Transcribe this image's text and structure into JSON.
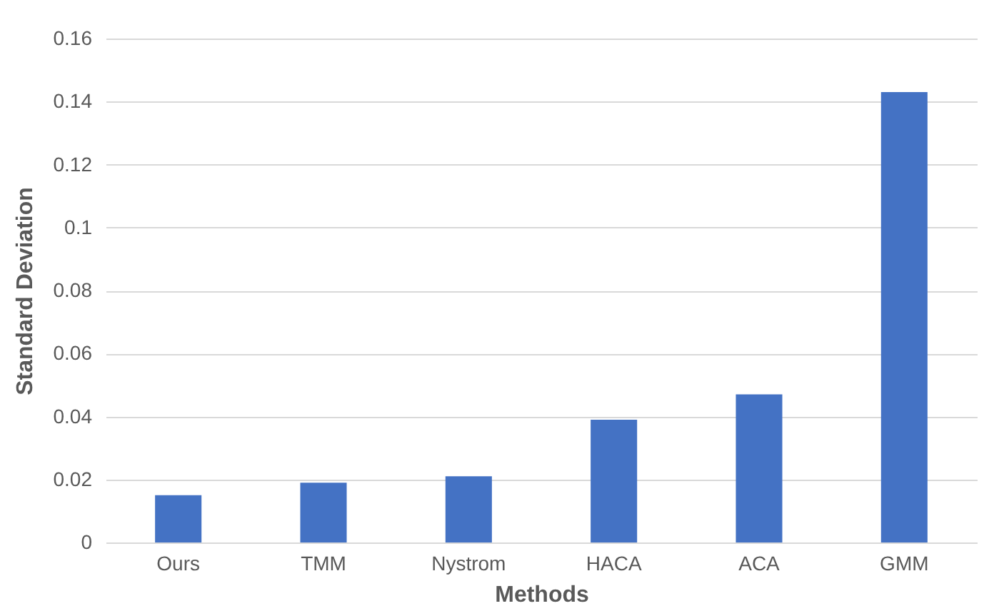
{
  "chart_data": {
    "type": "bar",
    "xlabel": "Methods",
    "ylabel": "Standard Deviation",
    "categories": [
      "Ours",
      "TMM",
      "Nystrom",
      "HACA",
      "ACA",
      "GMM"
    ],
    "values": [
      0.015,
      0.019,
      0.021,
      0.039,
      0.047,
      0.143
    ],
    "color": "#4472c4",
    "ylim": [
      0,
      0.16
    ],
    "yticks": [
      0,
      0.02,
      0.04,
      0.06,
      0.08,
      0.1,
      0.12,
      0.14,
      0.16
    ],
    "grid": "y"
  }
}
